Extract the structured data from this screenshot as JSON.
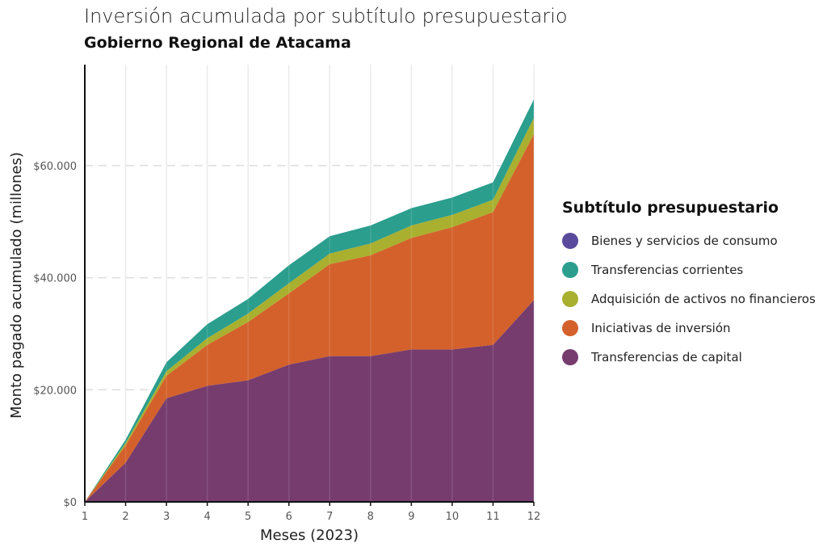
{
  "chart_data": {
    "type": "area",
    "stacked": true,
    "title": "Inversión acumulada por subtítulo presupuestario",
    "subtitle": "Gobierno Regional de Atacama",
    "xlabel": "Meses (2023)",
    "ylabel": "Monto pagado acumulado (millones)",
    "x": [
      1,
      2,
      3,
      4,
      5,
      6,
      7,
      8,
      9,
      10,
      11,
      12
    ],
    "x_ticks": [
      "1",
      "2",
      "3",
      "4",
      "5",
      "6",
      "7",
      "8",
      "9",
      "10",
      "11",
      "12"
    ],
    "y_ticks": [
      {
        "value": 0,
        "label": "$0"
      },
      {
        "value": 20000,
        "label": "$20.000"
      },
      {
        "value": 40000,
        "label": "$40.000"
      },
      {
        "value": 60000,
        "label": "$60.000"
      }
    ],
    "ylim": [
      0,
      78000
    ],
    "legend_title": "Subtítulo presupuestario",
    "legend_position": "right",
    "grid": "y-dashed, x-vertical-light",
    "series": [
      {
        "name": "Transferencias de capital",
        "color": "#763c6e",
        "values": [
          0,
          7000,
          18500,
          20700,
          21700,
          24500,
          26000,
          26000,
          27200,
          27200,
          28000,
          36000
        ]
      },
      {
        "name": "Iniciativas de inversión",
        "color": "#d4612b",
        "values": [
          0,
          3100,
          4000,
          7300,
          10400,
          12700,
          16400,
          18000,
          19900,
          21800,
          23700,
          29600
        ]
      },
      {
        "name": "Adquisición de activos no financieros",
        "color": "#a9b02f",
        "values": [
          0,
          400,
          800,
          1200,
          1500,
          1800,
          1900,
          2100,
          2200,
          2200,
          2200,
          2900
        ]
      },
      {
        "name": "Transferencias corrientes",
        "color": "#2b9e8e",
        "values": [
          0,
          600,
          1600,
          2500,
          2600,
          3200,
          3100,
          3200,
          3100,
          3100,
          3100,
          3300
        ]
      },
      {
        "name": "Bienes y servicios de consumo",
        "color": "#5a4a9c",
        "values": [
          0,
          0,
          0,
          0,
          0,
          0,
          0,
          0,
          0,
          0,
          0,
          0
        ]
      }
    ],
    "legend_order": [
      "Bienes y servicios de consumo",
      "Transferencias corrientes",
      "Adquisición de activos no financieros",
      "Iniciativas de inversión",
      "Transferencias de capital"
    ]
  }
}
